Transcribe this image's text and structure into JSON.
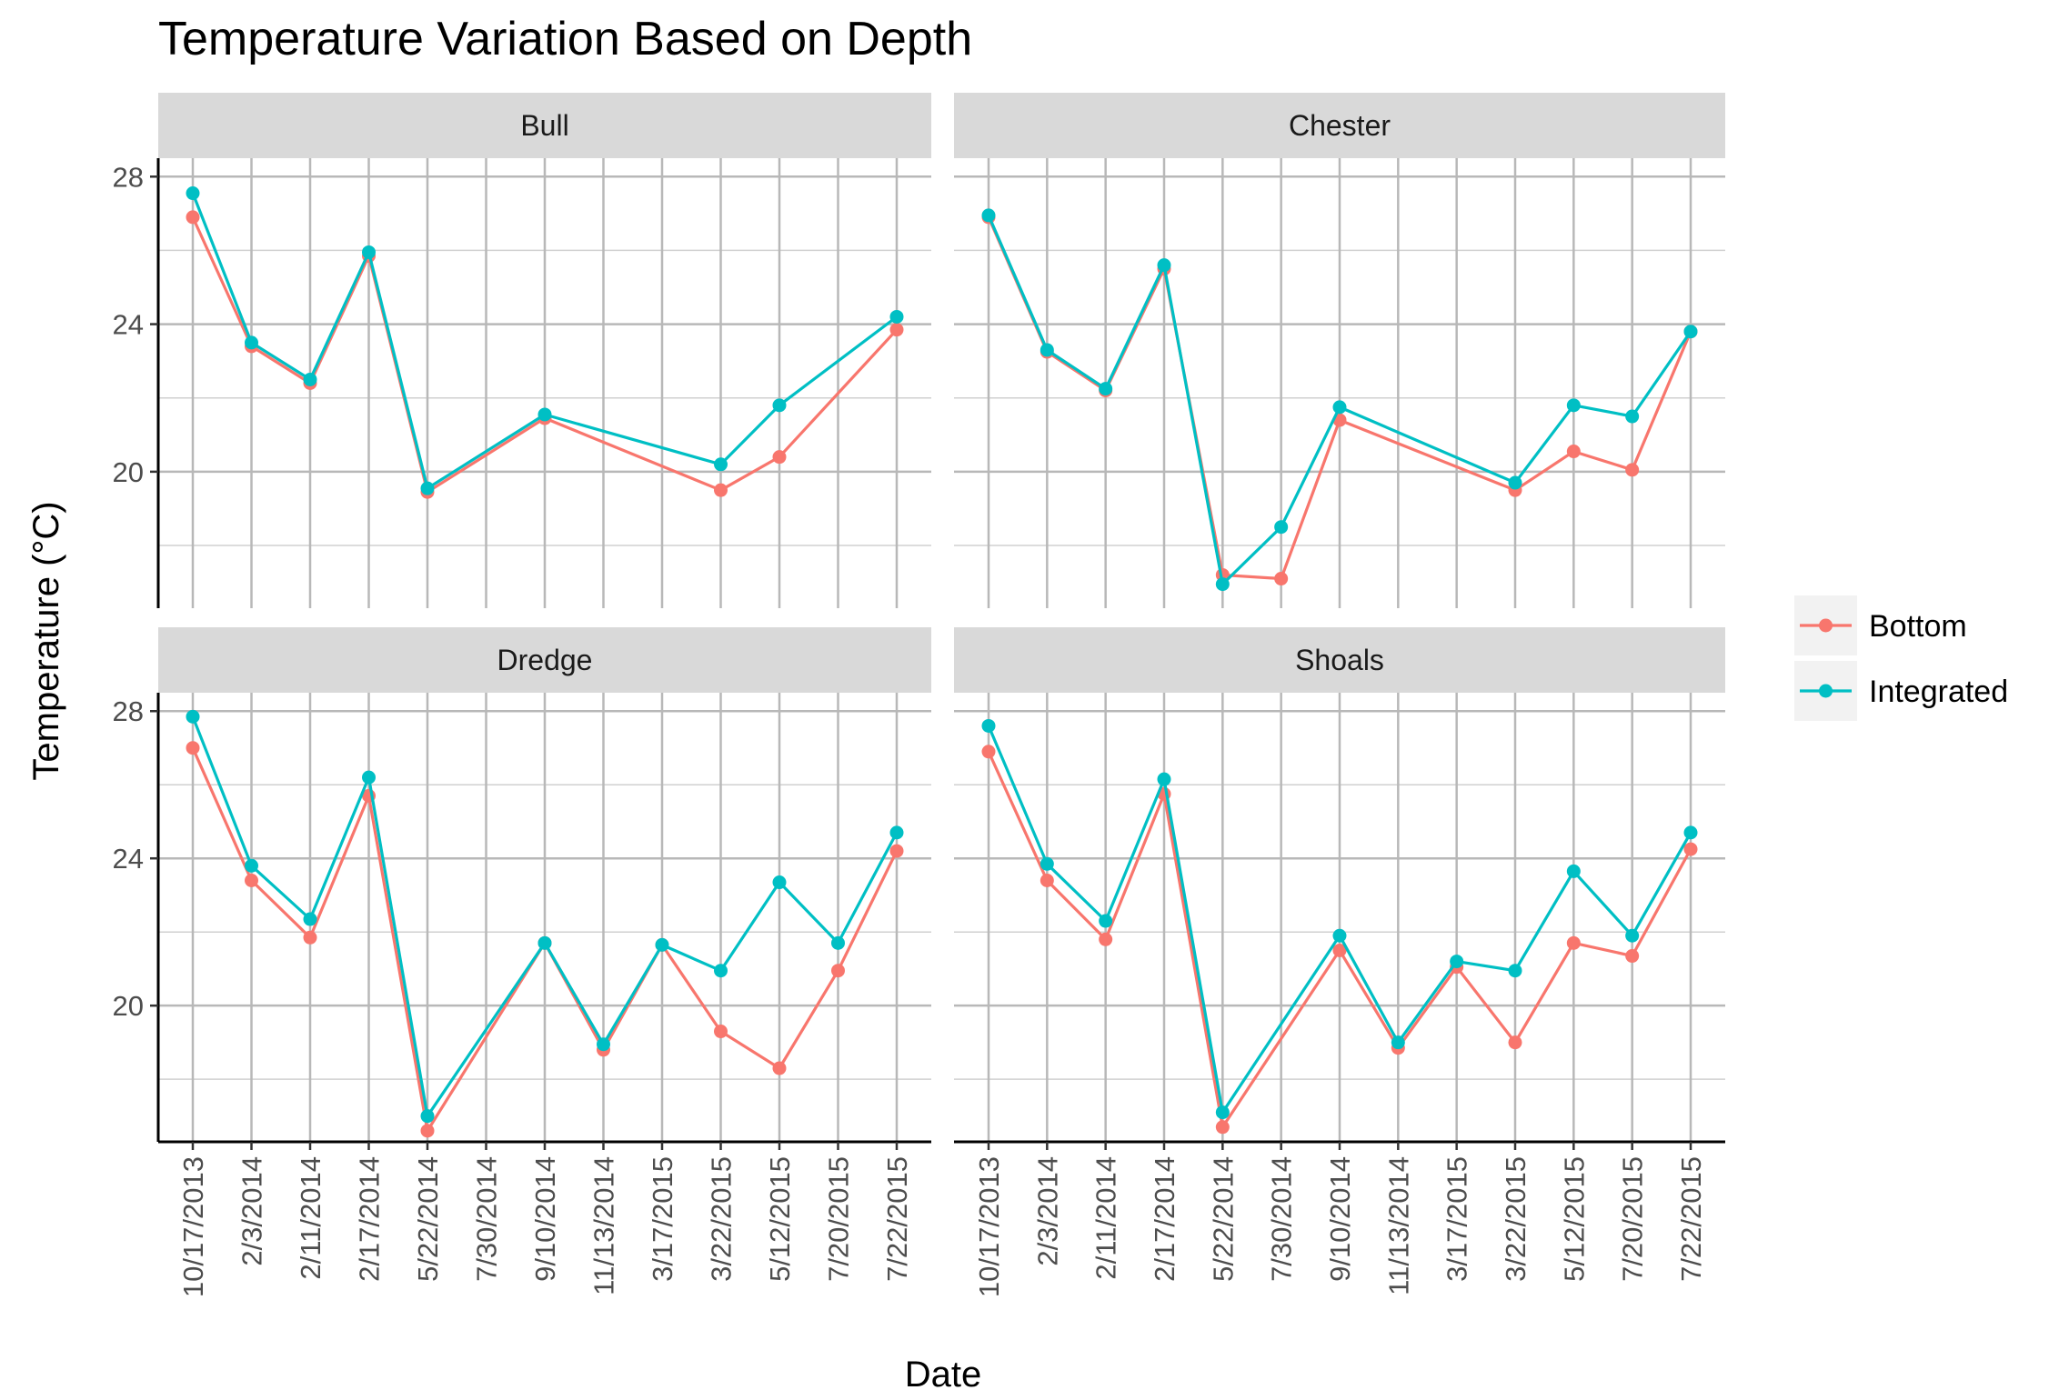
{
  "chart_data": {
    "type": "line",
    "title": "Temperature Variation Based on Depth",
    "xlabel": "Date",
    "ylabel": "Temperature (°C)",
    "categories": [
      "10/17/2013",
      "2/3/2014",
      "2/11/2014",
      "2/17/2014",
      "5/22/2014",
      "7/30/2014",
      "9/10/2014",
      "11/13/2014",
      "3/17/2015",
      "3/22/2015",
      "5/12/2015",
      "7/20/2015",
      "7/22/2015"
    ],
    "y_ticks": [
      20,
      24,
      28
    ],
    "ylim": [
      16.3,
      28.5
    ],
    "grid": true,
    "legend": {
      "position": "right",
      "entries": [
        {
          "name": "Bottom",
          "color": "#F8766D"
        },
        {
          "name": "Integrated",
          "color": "#00BFC4"
        }
      ]
    },
    "panels": [
      {
        "name": "Bull",
        "series": [
          {
            "name": "Bottom",
            "values": [
              26.9,
              23.4,
              22.4,
              25.85,
              19.45,
              null,
              21.45,
              null,
              null,
              19.5,
              20.4,
              null,
              23.85
            ]
          },
          {
            "name": "Integrated",
            "values": [
              27.55,
              23.5,
              22.5,
              25.95,
              19.55,
              null,
              21.55,
              null,
              null,
              20.2,
              21.8,
              null,
              24.2
            ]
          }
        ]
      },
      {
        "name": "Chester",
        "series": [
          {
            "name": "Bottom",
            "values": [
              26.9,
              23.25,
              22.2,
              25.5,
              17.2,
              17.1,
              21.4,
              null,
              null,
              19.5,
              20.55,
              20.05,
              23.8
            ]
          },
          {
            "name": "Integrated",
            "values": [
              26.95,
              23.3,
              22.25,
              25.6,
              16.95,
              18.5,
              21.75,
              null,
              null,
              19.7,
              21.8,
              21.5,
              23.8
            ]
          }
        ]
      },
      {
        "name": "Dredge",
        "series": [
          {
            "name": "Bottom",
            "values": [
              27.0,
              23.4,
              21.85,
              25.7,
              16.6,
              null,
              21.7,
              18.8,
              21.65,
              19.3,
              18.3,
              20.95,
              24.2
            ]
          },
          {
            "name": "Integrated",
            "values": [
              27.85,
              23.8,
              22.35,
              26.2,
              17.0,
              null,
              21.7,
              18.95,
              21.65,
              20.95,
              23.35,
              21.7,
              24.7
            ]
          }
        ]
      },
      {
        "name": "Shoals",
        "series": [
          {
            "name": "Bottom",
            "values": [
              26.9,
              23.4,
              21.8,
              25.75,
              16.7,
              null,
              21.5,
              18.85,
              21.05,
              19.0,
              21.7,
              21.35,
              24.25
            ]
          },
          {
            "name": "Integrated",
            "values": [
              27.6,
              23.85,
              22.3,
              26.15,
              17.1,
              null,
              21.9,
              19.0,
              21.2,
              20.95,
              23.65,
              21.9,
              24.7
            ]
          }
        ]
      }
    ]
  }
}
